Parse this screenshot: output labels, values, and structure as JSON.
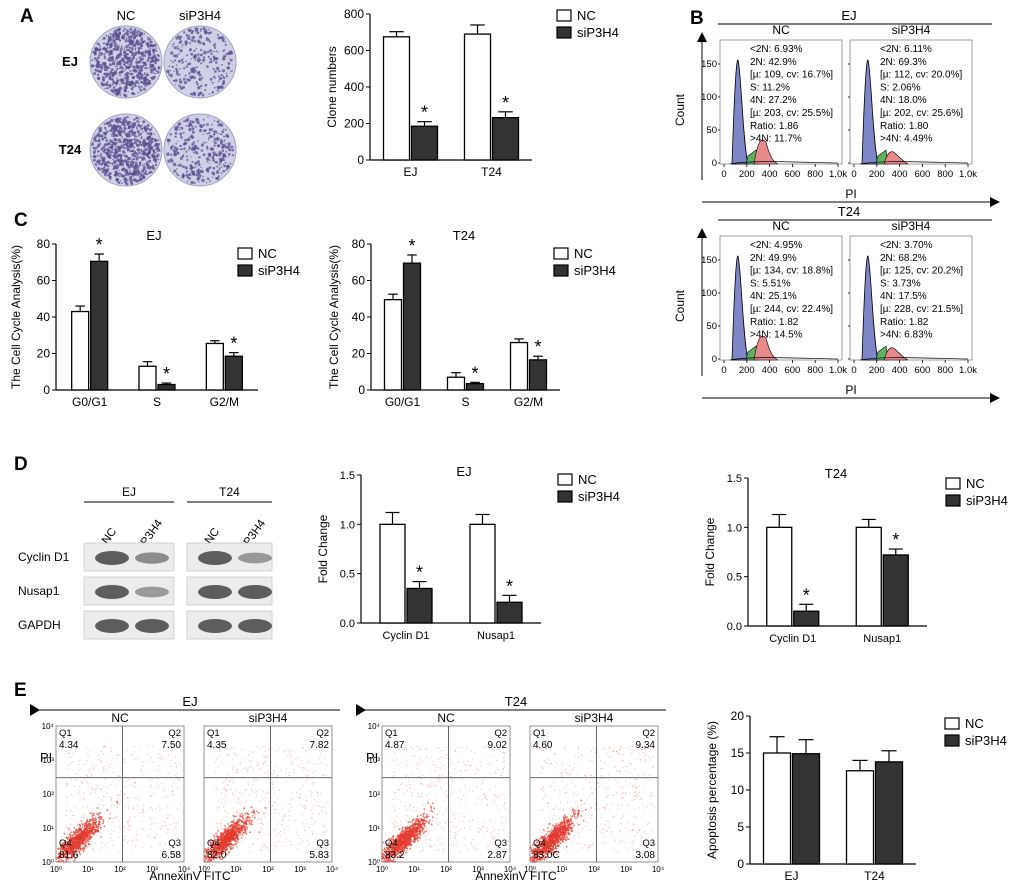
{
  "colors": {
    "nc": "#ffffff",
    "siP3H4": "#333333",
    "dish": "#b9b9d6",
    "blot": "#555555",
    "blue_peak": "#7f86c8",
    "green_peak": "#5fb35f",
    "red_peak": "#e8898b",
    "dots": "#e23b2e"
  },
  "panels": {
    "A": "A",
    "B": "B",
    "C": "C",
    "D": "D",
    "E": "E"
  },
  "panelA": {
    "col_nc": "NC",
    "col_si": "siP3H4",
    "row_ej": "EJ",
    "row_t24": "T24"
  },
  "panelB": {
    "xlabel": "PI",
    "ylabel": "Count",
    "yticks": [
      "150",
      "100",
      "50",
      "0"
    ],
    "xticks": [
      "0",
      "200",
      "400",
      "600",
      "800",
      "1.0k"
    ],
    "blocks": [
      {
        "cell": "EJ",
        "groups": [
          {
            "name": "NC",
            "lines": [
              "<2N: 6.93%",
              "2N: 42.9%",
              "[µ: 109, cv: 16.7%]",
              "S: 11.2%",
              "4N: 27.2%",
              "[µ: 203, cv: 25.5%]",
              "Ratio: 1.86",
              ">4N: 11.7%"
            ]
          },
          {
            "name": "siP3H4",
            "lines": [
              "<2N: 6.11%",
              "2N: 69.3%",
              "[µ: 112, cv: 20.0%]",
              "S: 2.06%",
              "4N: 18.0%",
              "[µ: 202, cv: 25.6%]",
              "Ratio: 1.80",
              ">4N: 4.49%"
            ]
          }
        ]
      },
      {
        "cell": "T24",
        "groups": [
          {
            "name": "NC",
            "lines": [
              "<2N: 4.95%",
              "2N: 49.9%",
              "[µ: 134, cv: 18.8%]",
              "S: 5.51%",
              "4N: 25.1%",
              "[µ: 244, cv: 22.4%]",
              "Ratio: 1.82",
              ">4N: 14.5%"
            ]
          },
          {
            "name": "siP3H4",
            "lines": [
              "<2N: 3.70%",
              "2N: 68.2%",
              "[µ: 125, cv: 20.2%]",
              "S: 3.73%",
              "4N: 17.5%",
              "[µ: 228, cv: 21.5%]",
              "Ratio: 1.82",
              ">4N: 6.83%"
            ]
          }
        ]
      }
    ]
  },
  "panelD_blot": {
    "cells": [
      "EJ",
      "T24"
    ],
    "lanes": [
      "NC",
      "siP3H4"
    ],
    "proteins": [
      "Cyclin D1",
      "Nusap1",
      "GAPDH"
    ],
    "intensity": {
      "EJ": [
        [
          1.0,
          0.55
        ],
        [
          1.0,
          0.45
        ],
        [
          1.0,
          1.0
        ]
      ],
      "T24": [
        [
          1.0,
          0.45
        ],
        [
          1.0,
          1.0
        ],
        [
          1.0,
          1.0
        ]
      ]
    }
  },
  "panelE_flow": {
    "xlabel": "AnnexinV FITC",
    "ylabel": "PI",
    "decades": [
      "10⁰",
      "10¹",
      "10²",
      "10³",
      "10⁴"
    ],
    "blocks": [
      {
        "cell": "EJ",
        "plots": [
          {
            "name": "NC",
            "Q1": "4.34",
            "Q2": "7.50",
            "Q3": "6.58",
            "Q4": "81.6"
          },
          {
            "name": "siP3H4",
            "Q1": "4.35",
            "Q2": "7.82",
            "Q3": "5.83",
            "Q4": "82.0"
          }
        ]
      },
      {
        "cell": "T24",
        "plots": [
          {
            "name": "NC",
            "Q1": "4.87",
            "Q2": "9.02",
            "Q3": "2.87",
            "Q4": "83.2"
          },
          {
            "name": "siP3H4",
            "Q1": "4.60",
            "Q2": "9.34",
            "Q3": "3.08",
            "Q4": "83.0C"
          }
        ]
      }
    ],
    "quadrant_labels": [
      "Q1",
      "Q2",
      "Q3",
      "Q4"
    ]
  },
  "chart_data": [
    {
      "id": "A_bar",
      "type": "bar",
      "title": "",
      "ylabel": "Clone numbers",
      "ylim": [
        0,
        800
      ],
      "yticks": [
        0,
        200,
        400,
        600,
        800
      ],
      "categories": [
        "EJ",
        "T24"
      ],
      "series": [
        {
          "name": "NC",
          "values": [
            675,
            690
          ],
          "errors": [
            28,
            50
          ]
        },
        {
          "name": "siP3H4",
          "values": [
            185,
            232
          ],
          "errors": [
            25,
            32
          ]
        }
      ],
      "sig": [
        false,
        true
      ],
      "sig_label": "*",
      "legend": "top-right"
    },
    {
      "id": "C_EJ",
      "type": "bar",
      "title": "EJ",
      "ylabel": "The Cell Cycle Analysis(%)",
      "ylim": [
        0,
        80
      ],
      "yticks": [
        0,
        20,
        40,
        60,
        80
      ],
      "categories": [
        "G0/G1",
        "S",
        "G2/M"
      ],
      "series": [
        {
          "name": "NC",
          "values": [
            43,
            13,
            25.5
          ],
          "errors": [
            3,
            2.5,
            1.5
          ]
        },
        {
          "name": "siP3H4",
          "values": [
            70.5,
            3,
            18.5
          ],
          "errors": [
            4,
            0.8,
            2
          ]
        }
      ],
      "sig": [
        false,
        true
      ],
      "sig_label": "*",
      "legend": "top-right"
    },
    {
      "id": "C_T24",
      "type": "bar",
      "title": "T24",
      "ylabel": "The Cell Cycle Analysis(%)",
      "ylim": [
        0,
        80
      ],
      "yticks": [
        0,
        20,
        40,
        60,
        80
      ],
      "categories": [
        "G0/G1",
        "S",
        "G2/M"
      ],
      "series": [
        {
          "name": "NC",
          "values": [
            49.5,
            7,
            26
          ],
          "errors": [
            3,
            2.5,
            2
          ]
        },
        {
          "name": "siP3H4",
          "values": [
            69.5,
            3.5,
            16.5
          ],
          "errors": [
            4.5,
            0.7,
            2
          ]
        }
      ],
      "sig": [
        false,
        true
      ],
      "sig_label": "*",
      "legend": "top-right"
    },
    {
      "id": "D_EJ",
      "type": "bar",
      "title": "EJ",
      "ylabel": "Fold Change",
      "ylim": [
        0,
        1.5
      ],
      "yticks": [
        0.0,
        0.5,
        1.0,
        1.5
      ],
      "categories": [
        "Cyclin D1",
        "Nusap1"
      ],
      "series": [
        {
          "name": "NC",
          "values": [
            1.0,
            1.0
          ],
          "errors": [
            0.12,
            0.1
          ]
        },
        {
          "name": "siP3H4",
          "values": [
            0.35,
            0.21
          ],
          "errors": [
            0.07,
            0.07
          ]
        }
      ],
      "sig": [
        false,
        true
      ],
      "sig_label": "*",
      "legend": "top-right"
    },
    {
      "id": "D_T24",
      "type": "bar",
      "title": "T24",
      "ylabel": "Fold Change",
      "ylim": [
        0,
        1.5
      ],
      "yticks": [
        0.0,
        0.5,
        1.0,
        1.5
      ],
      "categories": [
        "Cyclin D1",
        "Nusap1"
      ],
      "series": [
        {
          "name": "NC",
          "values": [
            1.0,
            1.0
          ],
          "errors": [
            0.13,
            0.08
          ]
        },
        {
          "name": "siP3H4",
          "values": [
            0.15,
            0.72
          ],
          "errors": [
            0.07,
            0.06
          ]
        }
      ],
      "sig": [
        false,
        true
      ],
      "sig_label": "*",
      "legend": "top-right"
    },
    {
      "id": "E_bar",
      "type": "bar",
      "title": "",
      "ylabel": "Apoptosis percentage (%)",
      "ylim": [
        0,
        20
      ],
      "yticks": [
        0,
        5,
        10,
        15,
        20
      ],
      "categories": [
        "EJ",
        "T24"
      ],
      "series": [
        {
          "name": "NC",
          "values": [
            15.0,
            12.6
          ],
          "errors": [
            2.2,
            1.4
          ]
        },
        {
          "name": "siP3H4",
          "values": [
            14.9,
            13.8
          ],
          "errors": [
            1.9,
            1.5
          ]
        }
      ],
      "sig": [
        false,
        false
      ],
      "sig_label": "*",
      "legend": "top-right"
    }
  ]
}
